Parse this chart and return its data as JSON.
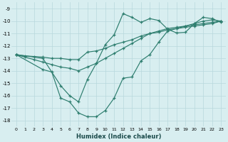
{
  "background_color": "#d8eef0",
  "grid_color": "#b8d8dc",
  "line_color": "#2d7d6e",
  "xlabel": "Humidex (Indice chaleur)",
  "xlim": [
    -0.5,
    23.5
  ],
  "ylim": [
    -18.5,
    -8.5
  ],
  "yticks": [
    -9,
    -10,
    -11,
    -12,
    -13,
    -14,
    -15,
    -16,
    -17,
    -18
  ],
  "xticks": [
    0,
    1,
    2,
    3,
    4,
    5,
    6,
    7,
    8,
    9,
    10,
    11,
    12,
    13,
    14,
    15,
    16,
    17,
    18,
    19,
    20,
    21,
    22,
    23
  ],
  "line1_x": [
    0,
    1,
    2,
    3,
    4,
    5,
    6,
    7,
    8,
    9,
    10,
    11,
    12,
    13,
    14,
    15,
    16,
    17,
    18,
    19,
    20,
    21,
    22,
    23
  ],
  "line1_y": [
    -12.7,
    -12.8,
    -12.85,
    -12.9,
    -13.0,
    -13.0,
    -13.1,
    -13.1,
    -12.5,
    -12.4,
    -12.2,
    -11.9,
    -11.7,
    -11.5,
    -11.2,
    -11.0,
    -10.9,
    -10.7,
    -10.6,
    -10.5,
    -10.4,
    -10.3,
    -10.2,
    -10.0
  ],
  "line2_x": [
    0,
    1,
    2,
    3,
    4,
    5,
    6,
    7,
    8,
    9,
    10,
    11,
    12,
    13,
    14,
    15,
    16,
    17,
    18,
    19,
    20,
    21,
    22,
    23
  ],
  "line2_y": [
    -12.7,
    -12.9,
    -13.1,
    -13.3,
    -13.5,
    -13.7,
    -13.8,
    -14.0,
    -13.7,
    -13.4,
    -13.0,
    -12.6,
    -12.2,
    -11.8,
    -11.4,
    -11.0,
    -10.8,
    -10.6,
    -10.5,
    -10.4,
    -10.3,
    -10.2,
    -10.1,
    -10.0
  ],
  "line3_x": [
    0,
    3,
    4,
    5,
    6,
    7,
    8,
    9,
    10,
    11,
    12,
    13,
    14,
    15,
    16,
    17,
    18,
    19,
    20,
    21,
    22,
    23
  ],
  "line3_y": [
    -12.7,
    -13.9,
    -14.1,
    -16.2,
    -16.5,
    -17.4,
    -17.7,
    -17.7,
    -17.2,
    -16.2,
    -14.6,
    -14.5,
    -13.2,
    -12.7,
    -11.7,
    -10.8,
    -10.6,
    -10.4,
    -10.2,
    -10.0,
    -9.9,
    -10.0
  ],
  "line4_x": [
    0,
    3,
    5,
    6,
    7,
    8,
    9,
    10,
    11,
    12,
    13,
    14,
    15,
    16,
    17,
    18,
    19,
    20,
    21,
    22,
    23
  ],
  "line4_y": [
    -12.7,
    -13.0,
    -15.2,
    -16.0,
    -16.5,
    -14.7,
    -13.4,
    -11.9,
    -11.1,
    -9.4,
    -9.7,
    -10.1,
    -9.8,
    -9.95,
    -10.65,
    -10.95,
    -10.9,
    -10.2,
    -9.7,
    -9.8,
    -10.1
  ]
}
